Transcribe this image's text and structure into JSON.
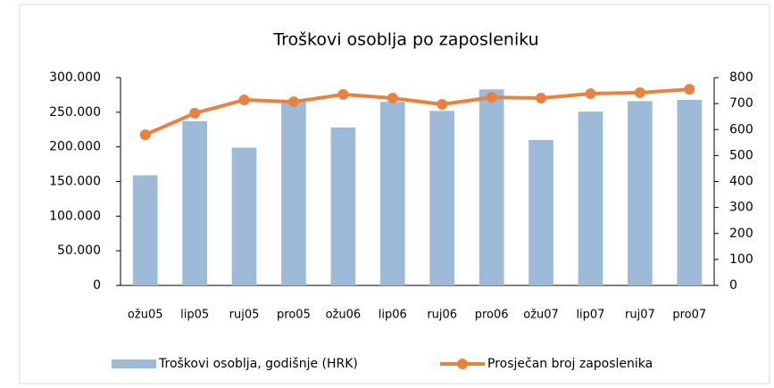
{
  "chart_data": {
    "type": "bar_line",
    "title": "Troškovi osoblja po zaposleniku",
    "categories": [
      "ožu05",
      "lip05",
      "ruj05",
      "pro05",
      "ožu06",
      "lip06",
      "ruj06",
      "pro06",
      "ožu07",
      "lip07",
      "ruj07",
      "pro07"
    ],
    "series": [
      {
        "name": "Troškovi osoblja, godišnje (HRK)",
        "type": "bar",
        "color": "#9dbbd9",
        "values": [
          159000,
          237000,
          199000,
          266000,
          228000,
          265000,
          252000,
          283000,
          210000,
          251000,
          266000,
          268000
        ]
      },
      {
        "name": "Prosječan broj zaposlenika",
        "type": "line",
        "axis": "y2",
        "color": "#e8823e",
        "values": [
          580,
          663,
          714,
          707,
          735,
          721,
          697,
          724,
          721,
          738,
          742,
          755
        ]
      }
    ],
    "ylim": [
      0,
      300000
    ],
    "yticks": [
      0,
      {
        "value": 50000,
        "label": "50.000"
      },
      {
        "value": 100000,
        "label": "100.000"
      },
      {
        "value": 150000,
        "label": "150.000"
      },
      {
        "value": 200000,
        "label": "200.000"
      },
      {
        "value": 250000,
        "label": "250.000"
      },
      {
        "value": 300000,
        "label": "300.000"
      }
    ],
    "y2lim": [
      0,
      800
    ],
    "y2ticks": [
      0,
      100,
      200,
      300,
      400,
      500,
      600,
      700,
      800
    ]
  }
}
